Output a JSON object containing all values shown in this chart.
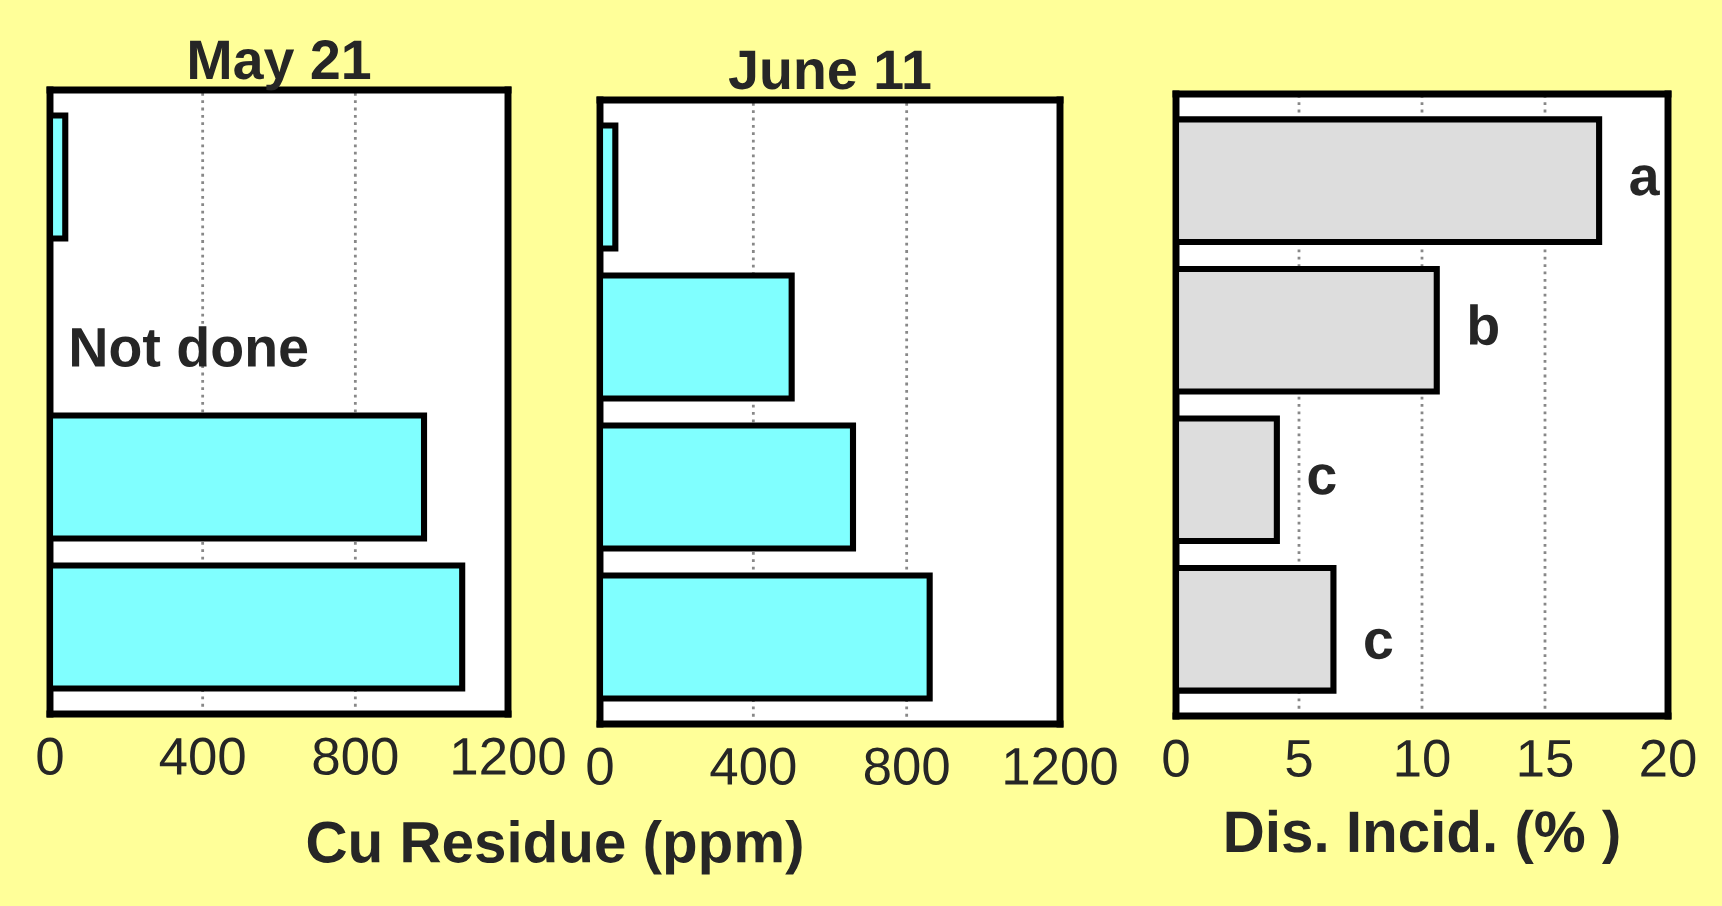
{
  "chart_data": [
    {
      "type": "bar",
      "orientation": "horizontal",
      "title": "May 21",
      "xlabel": "Cu Residue (ppm)",
      "categories": [
        null,
        null,
        null,
        null
      ],
      "values": [
        40,
        null,
        980,
        1080
      ],
      "color": "#80ffff",
      "xlim": [
        0,
        1200
      ],
      "xticks": [
        0,
        400,
        800,
        1200
      ],
      "grid": "x",
      "tick_labels": "x",
      "annotations": [
        "Not done"
      ]
    },
    {
      "type": "bar",
      "orientation": "horizontal",
      "title": "June 11",
      "categories": [
        null,
        null,
        null,
        null
      ],
      "values": [
        40,
        500,
        660,
        860
      ],
      "color": "#80ffff",
      "xlim": [
        0,
        1200
      ],
      "xticks": [
        0,
        400,
        800,
        1200
      ],
      "grid": "x",
      "tick_labels": "x"
    },
    {
      "type": "bar",
      "orientation": "horizontal",
      "xlabel": "Dis. Incid. (% )",
      "categories": [
        null,
        null,
        null,
        null
      ],
      "values": [
        17.2,
        10.6,
        4.1,
        6.4
      ],
      "value_labels": [
        "a",
        "b",
        "c",
        "c"
      ],
      "color": "#dddddd",
      "xlim": [
        0,
        20
      ],
      "xticks": [
        0,
        5,
        10,
        15,
        20
      ],
      "grid": "x",
      "tick_labels": "x"
    }
  ]
}
